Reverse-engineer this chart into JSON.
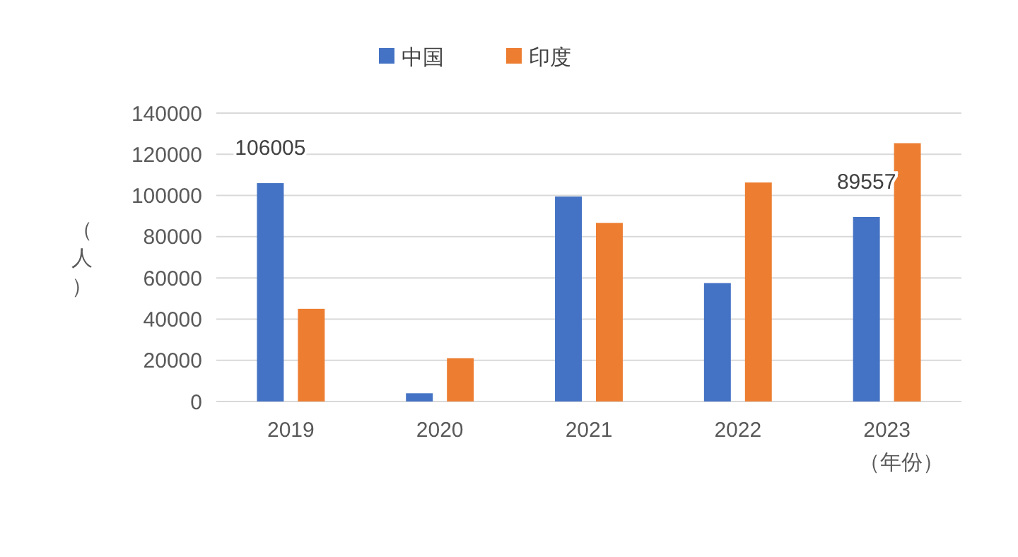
{
  "chart_data": {
    "type": "bar",
    "categories": [
      "2019",
      "2020",
      "2021",
      "2022",
      "2023"
    ],
    "series": [
      {
        "name": "中国",
        "color": "#4472c4",
        "values": [
          106005,
          4000,
          99500,
          57500,
          89557
        ],
        "value_labels": [
          "106005",
          null,
          null,
          null,
          "89557"
        ]
      },
      {
        "name": "印度",
        "color": "#ed7d31",
        "values": [
          45000,
          21000,
          86700,
          106300,
          125400
        ]
      }
    ],
    "xlabel": "（年份）",
    "ylabel": "（人）",
    "ylim": [
      0,
      140000
    ],
    "yticks": [
      0,
      20000,
      40000,
      60000,
      80000,
      100000,
      120000,
      140000
    ],
    "grid": "y",
    "legend": "top"
  }
}
